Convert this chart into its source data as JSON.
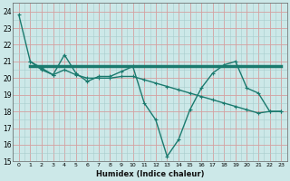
{
  "xlabel": "Humidex (Indice chaleur)",
  "bg_color": "#cce8e8",
  "line_color": "#1a7a6e",
  "xlim": [
    -0.5,
    23.5
  ],
  "ylim": [
    15,
    24.5
  ],
  "yticks": [
    15,
    16,
    17,
    18,
    19,
    20,
    21,
    22,
    23,
    24
  ],
  "xticks": [
    0,
    1,
    2,
    3,
    4,
    5,
    6,
    7,
    8,
    9,
    10,
    11,
    12,
    13,
    14,
    15,
    16,
    17,
    18,
    19,
    20,
    21,
    22,
    23
  ],
  "line1_x": [
    0,
    1,
    2,
    3,
    4,
    5,
    6,
    7,
    8,
    9,
    10,
    11,
    12,
    13,
    14,
    15,
    16,
    17,
    18,
    19,
    20,
    21,
    22,
    23
  ],
  "line1_y": [
    23.8,
    21.0,
    20.5,
    20.2,
    21.4,
    20.3,
    19.8,
    20.1,
    20.1,
    20.4,
    20.7,
    18.5,
    17.5,
    15.3,
    16.3,
    18.1,
    19.4,
    20.3,
    20.8,
    21.0,
    19.4,
    19.1,
    18.0,
    18.0
  ],
  "line2_x": [
    1,
    23
  ],
  "line2_y": [
    20.7,
    20.7
  ],
  "line3_x": [
    1,
    2,
    3,
    4,
    5,
    6,
    7,
    8,
    9,
    10,
    11,
    12,
    13,
    14,
    15,
    16,
    17,
    18,
    19,
    20,
    21,
    22,
    23
  ],
  "line3_y": [
    21.0,
    20.6,
    20.2,
    20.5,
    20.2,
    20.0,
    20.0,
    20.0,
    20.1,
    20.1,
    19.9,
    19.7,
    19.5,
    19.3,
    19.1,
    18.9,
    18.7,
    18.5,
    18.3,
    18.1,
    17.9,
    18.0,
    18.0
  ]
}
